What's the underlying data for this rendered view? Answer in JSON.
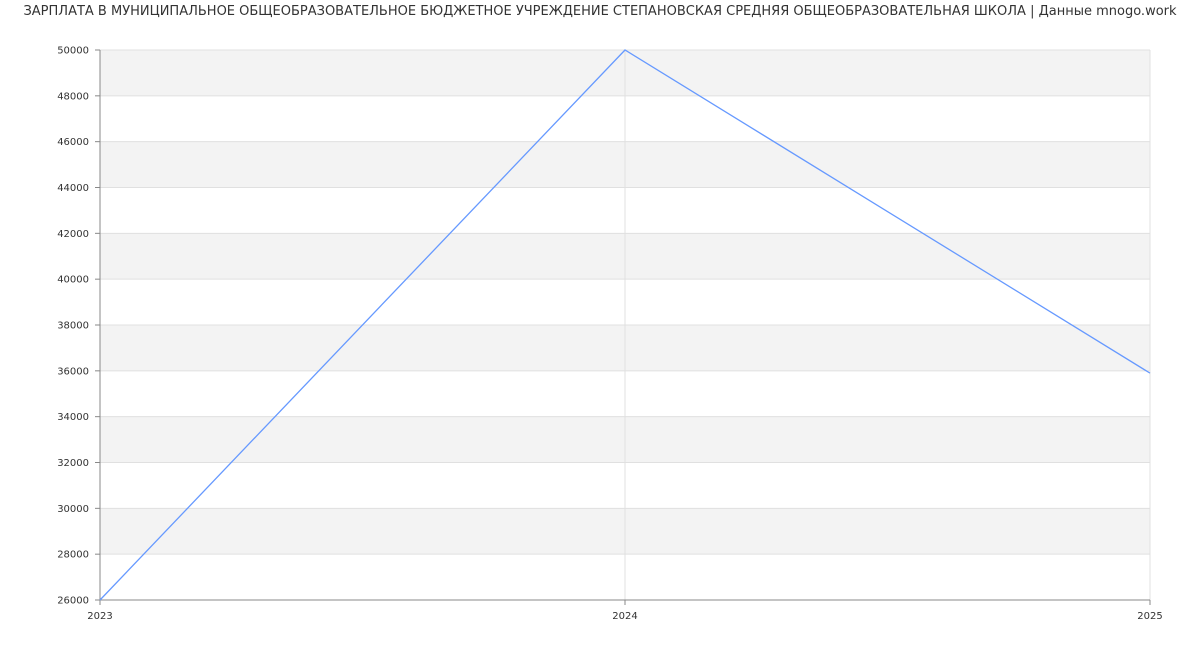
{
  "chart_data": {
    "type": "line",
    "title": "ЗАРПЛАТА В МУНИЦИПАЛЬНОЕ ОБЩЕОБРАЗОВАТЕЛЬНОЕ БЮДЖЕТНОЕ УЧРЕЖДЕНИЕ СТЕПАНОВСКАЯ СРЕДНЯЯ ОБЩЕОБРАЗОВАТЕЛЬНАЯ ШКОЛА | Данные mnogo.work",
    "x": [
      "2023",
      "2024",
      "2025"
    ],
    "series": [
      {
        "values": [
          26000,
          50000,
          35900
        ],
        "color": "#6699ff"
      }
    ],
    "ylim": [
      26000,
      50000
    ],
    "yticks": [
      26000,
      28000,
      30000,
      32000,
      34000,
      36000,
      38000,
      40000,
      42000,
      44000,
      46000,
      48000,
      50000
    ],
    "grid": true,
    "band_color": "#f3f3f3",
    "grid_color": "#e0e0e0"
  }
}
